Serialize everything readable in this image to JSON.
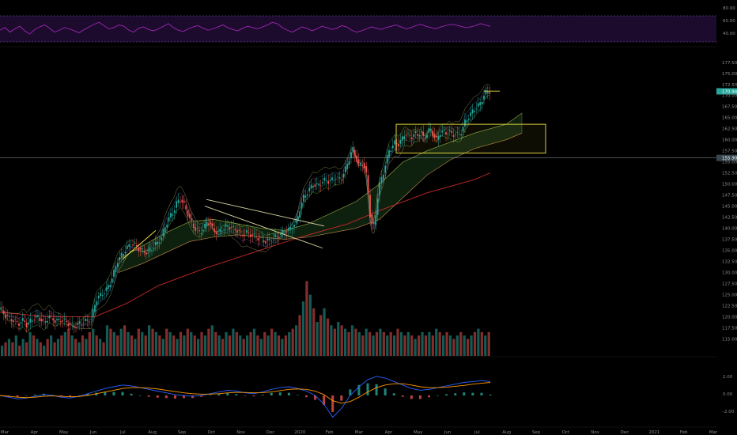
{
  "chart_data": {
    "type": "candlestick",
    "price_axis": {
      "range": [
        111.5,
        180.5
      ],
      "ticks": [
        "177.50",
        "175.00",
        "172.50",
        "170.00",
        "167.50",
        "165.00",
        "162.50",
        "160.00",
        "157.50",
        "155.00",
        "152.50",
        "150.00",
        "147.50",
        "145.00",
        "142.50",
        "140.00",
        "137.50",
        "135.00",
        "132.50",
        "130.00",
        "127.50",
        "125.00",
        "122.50",
        "120.00",
        "117.50",
        "115.00"
      ]
    },
    "time_axis": {
      "ticks": [
        "Mar",
        "Apr",
        "May",
        "Jun",
        "Jul",
        "Aug",
        "Sep",
        "Oct",
        "Nov",
        "Dec",
        "2020",
        "Feb",
        "Mar",
        "Apr",
        "May",
        "Jun",
        "Jul",
        "Aug",
        "Sep",
        "Oct",
        "Nov",
        "Dec",
        "2021",
        "Feb",
        "Mar"
      ]
    },
    "badges": {
      "last_price": "170.94",
      "horizontal_line": "155.90"
    },
    "colors": {
      "up": "#26a69a",
      "down": "#ef5350",
      "annotation": "#f0e442",
      "rsi": "#9c27b0",
      "macd": "#2962ff",
      "signal": "#ff9800"
    },
    "price_path": [
      [
        0,
        122.0
      ],
      [
        8,
        120.0
      ],
      [
        16,
        119.2
      ],
      [
        24,
        118.5
      ],
      [
        30,
        119.3
      ],
      [
        34,
        118.0
      ],
      [
        40,
        119.4
      ],
      [
        48,
        120.0
      ],
      [
        56,
        118.5
      ],
      [
        62,
        120.2
      ],
      [
        70,
        119.0
      ],
      [
        78,
        119.3
      ],
      [
        86,
        118.5
      ],
      [
        94,
        117.8
      ],
      [
        100,
        118.4
      ],
      [
        108,
        119.0
      ],
      [
        116,
        119.6
      ],
      [
        118,
        121.5
      ],
      [
        122,
        124.0
      ],
      [
        128,
        125.0
      ],
      [
        134,
        126.0
      ],
      [
        140,
        128.0
      ],
      [
        144,
        130.0
      ],
      [
        148,
        132.5
      ],
      [
        152,
        133.5
      ],
      [
        156,
        134.5
      ],
      [
        160,
        135.5
      ],
      [
        166,
        136.5
      ],
      [
        172,
        136.0
      ],
      [
        178,
        135.0
      ],
      [
        186,
        134.5
      ],
      [
        192,
        135.5
      ],
      [
        198,
        136.5
      ],
      [
        204,
        138.0
      ],
      [
        210,
        141.0
      ],
      [
        216,
        143.0
      ],
      [
        220,
        144.0
      ],
      [
        224,
        146.0
      ],
      [
        228,
        146.5
      ],
      [
        232,
        145.5
      ],
      [
        236,
        144.0
      ],
      [
        240,
        142.0
      ],
      [
        246,
        140.0
      ],
      [
        252,
        139.0
      ],
      [
        258,
        140.0
      ],
      [
        262,
        141.5
      ],
      [
        266,
        141.0
      ],
      [
        270,
        139.5
      ],
      [
        276,
        139.0
      ],
      [
        282,
        140.0
      ],
      [
        288,
        140.5
      ],
      [
        294,
        140.0
      ],
      [
        300,
        139.5
      ],
      [
        306,
        138.5
      ],
      [
        312,
        139.0
      ],
      [
        318,
        138.5
      ],
      [
        324,
        138.0
      ],
      [
        330,
        137.5
      ],
      [
        336,
        137.0
      ],
      [
        342,
        137.5
      ],
      [
        348,
        138.0
      ],
      [
        354,
        138.5
      ],
      [
        358,
        139.0
      ],
      [
        364,
        139.5
      ],
      [
        368,
        140.0
      ],
      [
        372,
        141.0
      ],
      [
        376,
        142.0
      ],
      [
        380,
        145.0
      ],
      [
        384,
        147.0
      ],
      [
        388,
        148.0
      ],
      [
        392,
        149.0
      ],
      [
        396,
        150.0
      ],
      [
        400,
        149.5
      ],
      [
        404,
        150.0
      ],
      [
        408,
        150.5
      ],
      [
        412,
        151.0
      ],
      [
        416,
        150.5
      ],
      [
        420,
        151.0
      ],
      [
        424,
        151.5
      ],
      [
        428,
        151.0
      ],
      [
        432,
        151.5
      ],
      [
        436,
        153.0
      ],
      [
        440,
        155.0
      ],
      [
        444,
        157.0
      ],
      [
        446,
        158.0
      ],
      [
        450,
        156.0
      ],
      [
        454,
        154.0
      ],
      [
        458,
        155.0
      ],
      [
        460,
        154.0
      ],
      [
        462,
        153.5
      ],
      [
        464,
        151.0
      ],
      [
        466,
        147.0
      ],
      [
        468,
        143.0
      ],
      [
        470,
        141.0
      ],
      [
        472,
        140.0
      ],
      [
        474,
        142.0
      ],
      [
        476,
        144.0
      ],
      [
        478,
        148.0
      ],
      [
        480,
        150.0
      ],
      [
        484,
        152.0
      ],
      [
        488,
        155.0
      ],
      [
        492,
        157.5
      ],
      [
        496,
        158.5
      ],
      [
        500,
        159.5
      ],
      [
        504,
        159.0
      ],
      [
        508,
        160.0
      ],
      [
        512,
        161.5
      ],
      [
        516,
        161.0
      ],
      [
        520,
        160.5
      ],
      [
        524,
        161.5
      ],
      [
        528,
        161.0
      ],
      [
        532,
        162.0
      ],
      [
        536,
        160.0
      ],
      [
        540,
        161.5
      ],
      [
        544,
        162.5
      ],
      [
        548,
        161.0
      ],
      [
        552,
        160.0
      ],
      [
        556,
        161.5
      ],
      [
        560,
        162.0
      ],
      [
        564,
        161.5
      ],
      [
        568,
        162.0
      ],
      [
        572,
        161.0
      ],
      [
        576,
        161.5
      ],
      [
        580,
        161.0
      ],
      [
        584,
        162.0
      ],
      [
        588,
        164.0
      ],
      [
        592,
        165.0
      ],
      [
        596,
        166.0
      ],
      [
        600,
        167.0
      ],
      [
        604,
        167.5
      ],
      [
        608,
        168.5
      ],
      [
        612,
        170.0
      ],
      [
        616,
        171.0
      ],
      [
        620,
        170.9
      ]
    ],
    "ma_long_path": [
      [
        0,
        121.0
      ],
      [
        60,
        120.0
      ],
      [
        120,
        120.0
      ],
      [
        160,
        123.0
      ],
      [
        200,
        127.0
      ],
      [
        260,
        131.0
      ],
      [
        320,
        134.5
      ],
      [
        380,
        138.0
      ],
      [
        440,
        141.0
      ],
      [
        480,
        144.0
      ],
      [
        540,
        148.0
      ],
      [
        600,
        151.0
      ],
      [
        620,
        152.5
      ]
    ],
    "cloud_band": {
      "upper": [
        [
          150,
          133.0
        ],
        [
          180,
          136.0
        ],
        [
          210,
          139.0
        ],
        [
          240,
          141.5
        ],
        [
          270,
          142.0
        ],
        [
          300,
          141.0
        ],
        [
          330,
          140.0
        ],
        [
          360,
          139.5
        ],
        [
          390,
          141.0
        ],
        [
          420,
          143.5
        ],
        [
          450,
          146.0
        ],
        [
          480,
          150.0
        ],
        [
          510,
          155.0
        ],
        [
          540,
          157.5
        ],
        [
          570,
          159.5
        ],
        [
          600,
          161.5
        ],
        [
          640,
          163.5
        ],
        [
          660,
          166.0
        ]
      ],
      "lower": [
        [
          150,
          130.0
        ],
        [
          180,
          132.0
        ],
        [
          210,
          134.5
        ],
        [
          240,
          137.0
        ],
        [
          270,
          138.0
        ],
        [
          300,
          138.5
        ],
        [
          330,
          138.0
        ],
        [
          360,
          137.5
        ],
        [
          390,
          138.0
        ],
        [
          420,
          139.0
        ],
        [
          450,
          140.0
        ],
        [
          480,
          142.0
        ],
        [
          510,
          147.0
        ],
        [
          540,
          152.0
        ],
        [
          570,
          155.5
        ],
        [
          600,
          158.0
        ],
        [
          640,
          160.0
        ],
        [
          660,
          161.5
        ]
      ]
    },
    "trend_lines": [
      [
        [
          155,
          133.0
        ],
        [
          197,
          139.5
        ]
      ],
      [
        [
          259,
          145.0
        ],
        [
          408,
          135.5
        ]
      ],
      [
        [
          261,
          146.5
        ],
        [
          410,
          140.5
        ]
      ],
      [
        [
          612,
          171.0
        ],
        [
          632,
          171.0
        ]
      ]
    ],
    "boxes": [
      [
        501,
        163.5
      ],
      [
        690,
        157.0
      ]
    ],
    "hline_price": 155.9,
    "volume": {
      "values": [
        3,
        4,
        5,
        4,
        6,
        3,
        5,
        4,
        7,
        6,
        5,
        4,
        3,
        5,
        6,
        4,
        5,
        6,
        7,
        8,
        6,
        5,
        4,
        6,
        5,
        7,
        8,
        6,
        5,
        4,
        9,
        8,
        7,
        6,
        8,
        9,
        7,
        6,
        5,
        8,
        7,
        6,
        9,
        8,
        7,
        6,
        5,
        8,
        7,
        6,
        5,
        7,
        6,
        8,
        7,
        6,
        5,
        7,
        6,
        8,
        9,
        7,
        6,
        5,
        7,
        6,
        8,
        7,
        6,
        5,
        6,
        7,
        8,
        6,
        5,
        7,
        6,
        8,
        7,
        6,
        5,
        6,
        7,
        8,
        9,
        12,
        16,
        22,
        18,
        14,
        10,
        12,
        14,
        11,
        9,
        8,
        10,
        9,
        8,
        7,
        9,
        8,
        7,
        6,
        8,
        7,
        6,
        7,
        8,
        7,
        6,
        7,
        6,
        8,
        7,
        6,
        7,
        6,
        5,
        6,
        7,
        6,
        7,
        6,
        8,
        7,
        6,
        7,
        6,
        5,
        6,
        7,
        6,
        5,
        6,
        7,
        8,
        7,
        6,
        7
      ],
      "up_pattern": "alternate"
    },
    "rsi": {
      "ticks": [
        "80.00",
        "60.00",
        "40.00"
      ],
      "values": [
        58,
        62,
        55,
        60,
        64,
        57,
        52,
        59,
        63,
        66,
        61,
        55,
        58,
        62,
        60,
        57,
        54,
        59,
        63,
        67,
        70,
        65,
        60,
        62,
        66,
        64,
        58,
        55,
        61,
        63,
        59,
        57,
        60,
        64,
        68,
        62,
        58,
        56,
        60,
        63,
        65,
        61,
        58,
        60,
        63,
        66,
        62,
        59,
        57,
        61,
        64,
        62,
        60,
        63,
        66,
        70,
        68,
        62,
        58,
        55,
        59,
        63,
        61,
        57,
        60,
        64,
        62,
        59,
        61,
        65,
        63,
        58,
        55,
        57,
        60,
        63,
        61,
        59,
        62,
        64,
        66,
        63,
        60,
        62,
        65,
        67,
        64,
        62,
        60,
        63,
        65,
        67,
        66,
        64,
        62,
        63,
        65,
        68,
        66,
        64
      ]
    },
    "macd": {
      "ticks": [
        "2.00",
        "0.00",
        "-2.00"
      ],
      "macd_line": [
        0.0,
        -0.2,
        -0.4,
        -0.3,
        -0.1,
        0.1,
        0.0,
        -0.2,
        -0.3,
        -0.1,
        0.2,
        0.5,
        0.8,
        1.0,
        1.2,
        1.1,
        0.9,
        0.7,
        0.5,
        0.3,
        0.1,
        0.0,
        -0.1,
        0.0,
        0.2,
        0.4,
        0.6,
        0.5,
        0.3,
        0.2,
        0.4,
        0.7,
        0.9,
        1.0,
        0.8,
        0.5,
        0.0,
        -1.0,
        -2.5,
        -1.5,
        0.0,
        1.0,
        1.8,
        2.2,
        2.0,
        1.6,
        1.2,
        0.8,
        0.6,
        0.7,
        0.9,
        1.1,
        1.3,
        1.5,
        1.6,
        1.7,
        1.6
      ],
      "signal_line": [
        0.0,
        -0.1,
        -0.2,
        -0.25,
        -0.2,
        -0.1,
        -0.05,
        -0.1,
        -0.15,
        -0.12,
        0.0,
        0.2,
        0.4,
        0.6,
        0.8,
        0.9,
        0.9,
        0.85,
        0.75,
        0.6,
        0.45,
        0.3,
        0.2,
        0.15,
        0.15,
        0.2,
        0.3,
        0.35,
        0.35,
        0.3,
        0.32,
        0.4,
        0.55,
        0.7,
        0.75,
        0.7,
        0.5,
        0.1,
        -0.6,
        -0.9,
        -0.7,
        -0.2,
        0.4,
        0.9,
        1.2,
        1.35,
        1.35,
        1.2,
        1.0,
        0.9,
        0.9,
        0.95,
        1.05,
        1.15,
        1.3,
        1.4,
        1.5
      ]
    }
  }
}
